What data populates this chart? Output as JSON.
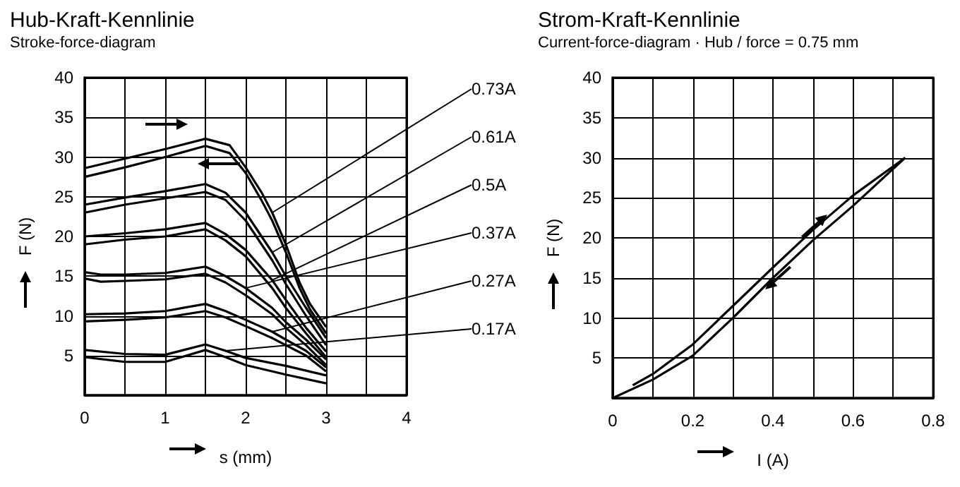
{
  "chart_data": [
    {
      "type": "line",
      "title": "Hub-Kraft-Kennlinie",
      "subtitle": "Stroke-force-diagram",
      "xlabel": "s (mm)",
      "ylabel": "F (N)",
      "xlim": [
        0,
        4
      ],
      "ylim": [
        0,
        40
      ],
      "grid": true,
      "marker": "none",
      "xticks": [
        0,
        {
          "value": 0.5,
          "label": null
        },
        1,
        {
          "value": 1.5,
          "label": null
        },
        2,
        {
          "value": 2.5,
          "label": null
        },
        3,
        {
          "value": 3.5,
          "label": null
        },
        4
      ],
      "yticks": [
        {
          "value": 0,
          "label": null
        },
        5,
        10,
        15,
        20,
        25,
        30,
        35,
        40
      ],
      "series": [
        {
          "name": "0.73A",
          "color": "#000000",
          "x": [
            0,
            0.5,
            1,
            1.5,
            1.8,
            2,
            2.2,
            2.33,
            2.5,
            2.67,
            2.8,
            3
          ],
          "values": [
            28.6,
            29.8,
            31,
            32.3,
            31.5,
            28.7,
            25.5,
            23,
            19,
            14.2,
            11.5,
            8.6
          ]
        },
        {
          "color": "#000000",
          "x": [
            0,
            0.5,
            1,
            1.5,
            1.8,
            2,
            2.2,
            2.33,
            2.5,
            2.67,
            2.8,
            3
          ],
          "values": [
            27.5,
            28.7,
            30,
            31.4,
            30.5,
            28,
            24.5,
            22,
            18,
            13.5,
            10.8,
            7.8
          ]
        },
        {
          "name": "0.61A",
          "color": "#000000",
          "x": [
            0,
            0.5,
            1,
            1.5,
            1.75,
            2,
            2.33,
            2.5,
            2.75,
            3
          ],
          "values": [
            24,
            24.9,
            25.7,
            26.6,
            25.5,
            23,
            18,
            15,
            11,
            7.2
          ]
        },
        {
          "color": "#000000",
          "x": [
            0,
            0.5,
            1,
            1.5,
            1.75,
            2,
            2.33,
            2.5,
            2.75,
            3
          ],
          "values": [
            23,
            24,
            24.8,
            25.6,
            24.6,
            22,
            17,
            14,
            10,
            6.3
          ]
        },
        {
          "name": "0.5A",
          "color": "#000000",
          "x": [
            0,
            0.5,
            1,
            1.5,
            1.75,
            2,
            2.33,
            2.5,
            2.75,
            3
          ],
          "values": [
            20,
            20.4,
            20.9,
            21.7,
            20.3,
            18.3,
            14.5,
            12,
            8.5,
            5.5
          ]
        },
        {
          "color": "#000000",
          "x": [
            0,
            0.5,
            1,
            1.5,
            1.75,
            2,
            2.33,
            2.5,
            2.75,
            3
          ],
          "values": [
            19,
            19.6,
            20,
            20.9,
            19.5,
            17.5,
            13.5,
            11,
            7.8,
            4.8
          ]
        },
        {
          "name": "0.37A",
          "color": "#000000",
          "x": [
            0,
            0.2,
            0.5,
            1,
            1.5,
            1.75,
            2,
            2.33,
            2.5,
            2.75,
            3
          ],
          "values": [
            15.5,
            15.2,
            15.2,
            15.4,
            16.2,
            15,
            13.5,
            11,
            9.2,
            7,
            4.5
          ]
        },
        {
          "color": "#000000",
          "x": [
            0,
            0.2,
            0.5,
            1,
            1.5,
            1.75,
            2,
            2.33,
            2.5,
            2.75,
            3
          ],
          "values": [
            14.7,
            14.3,
            14.4,
            14.6,
            15.3,
            14.2,
            12.6,
            10.2,
            8.5,
            6.3,
            3.8
          ]
        },
        {
          "name": "0.27A",
          "color": "#000000",
          "x": [
            0,
            0.5,
            1,
            1.5,
            1.75,
            2,
            2.33,
            2.5,
            2.75,
            3
          ],
          "values": [
            10.2,
            10.3,
            10.6,
            11.5,
            10.6,
            9.5,
            8,
            7,
            5.6,
            3.5
          ]
        },
        {
          "color": "#000000",
          "x": [
            0,
            0.5,
            1,
            1.5,
            1.75,
            2,
            2.33,
            2.5,
            2.75,
            3
          ],
          "values": [
            9.3,
            9.5,
            9.8,
            10.6,
            9.8,
            8.7,
            7.2,
            6.3,
            5,
            3
          ]
        },
        {
          "name": "0.17A",
          "color": "#000000",
          "x": [
            0,
            0.5,
            1,
            1.5,
            1.75,
            2,
            2.5,
            3
          ],
          "values": [
            5.7,
            5.2,
            5.1,
            6.4,
            5.6,
            4.7,
            3.7,
            2.5
          ]
        },
        {
          "color": "#000000",
          "x": [
            0,
            0.5,
            1,
            1.5,
            1.75,
            2,
            2.5,
            3
          ],
          "values": [
            4.8,
            4.2,
            4.2,
            5.7,
            4.8,
            3.8,
            2.6,
            1.5
          ]
        }
      ]
    },
    {
      "type": "line",
      "title": "Strom-Kraft-Kennlinie",
      "subtitle": "Current-force-diagram · Hub / force = 0.75 mm",
      "xlabel": "I (A)",
      "ylabel": "F (N)",
      "xlim": [
        0,
        0.8
      ],
      "ylim": [
        0,
        40
      ],
      "grid": true,
      "marker": "none",
      "xticks": [
        0,
        {
          "value": 0.1,
          "label": null
        },
        0.2,
        {
          "value": 0.3,
          "label": null
        },
        0.4,
        {
          "value": 0.5,
          "label": null
        },
        0.6,
        {
          "value": 0.7,
          "label": null
        },
        0.8
      ],
      "yticks": [
        {
          "value": 0,
          "label": null
        },
        5,
        10,
        15,
        20,
        25,
        30,
        35,
        40
      ],
      "series": [
        {
          "color": "#000000",
          "x": [
            0.05,
            0.1,
            0.2,
            0.3,
            0.4,
            0.5,
            0.6,
            0.73
          ],
          "values": [
            1.6,
            3,
            6.7,
            11.5,
            16.3,
            21,
            25.3,
            30
          ]
        },
        {
          "color": "#000000",
          "x": [
            0,
            0.1,
            0.2,
            0.3,
            0.4,
            0.5,
            0.6,
            0.73
          ],
          "values": [
            0,
            2.3,
            5.3,
            10,
            15,
            19.7,
            24,
            30
          ]
        }
      ]
    }
  ]
}
